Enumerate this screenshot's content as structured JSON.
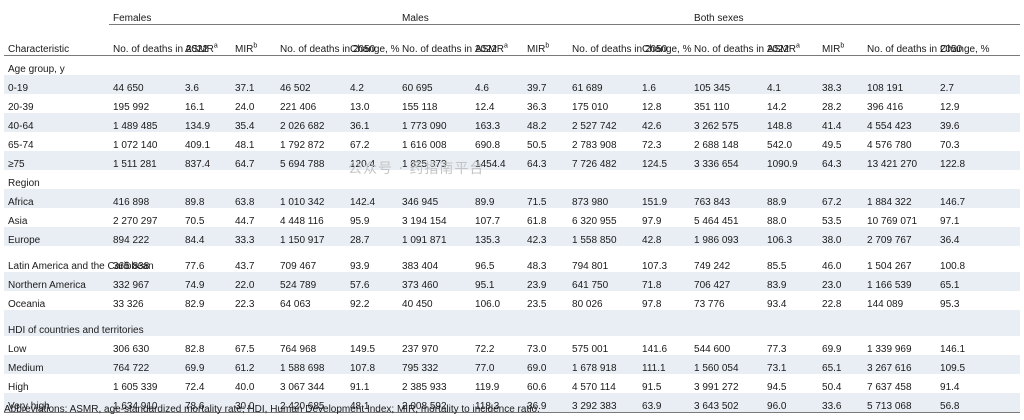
{
  "groups": [
    "Females",
    "Males",
    "Both sexes"
  ],
  "columns": {
    "characteristic": "Characteristic",
    "deaths2022": "No. of deaths in 2022",
    "asmr": "ASMR",
    "asmr_sup": "a",
    "mir": "MIR",
    "mir_sup": "b",
    "deaths2050": "No. of deaths in 2050",
    "change": "Change, %"
  },
  "sections": [
    {
      "title": "Age group, y",
      "rows": [
        {
          "label": "0-19",
          "values": [
            "44 650",
            "3.6",
            "37.1",
            "46 502",
            "4.2",
            "60 695",
            "4.6",
            "39.7",
            "61 689",
            "1.6",
            "105 345",
            "4.1",
            "38.3",
            "108 191",
            "2.7"
          ]
        },
        {
          "label": "20-39",
          "values": [
            "195 992",
            "16.1",
            "24.0",
            "221 406",
            "13.0",
            "155 118",
            "12.4",
            "36.3",
            "175 010",
            "12.8",
            "351 110",
            "14.2",
            "28.2",
            "396 416",
            "12.9"
          ]
        },
        {
          "label": "40-64",
          "values": [
            "1 489 485",
            "134.9",
            "35.4",
            "2 026 682",
            "36.1",
            "1 773 090",
            "163.3",
            "48.2",
            "2 527 742",
            "42.6",
            "3 262 575",
            "148.8",
            "41.4",
            "4 554 423",
            "39.6"
          ]
        },
        {
          "label": "65-74",
          "values": [
            "1 072 140",
            "409.1",
            "48.1",
            "1 792 872",
            "67.2",
            "1 616 008",
            "690.8",
            "50.5",
            "2 783 908",
            "72.3",
            "2 688 148",
            "542.0",
            "49.5",
            "4 576 780",
            "70.3"
          ]
        },
        {
          "label": "≥75",
          "values": [
            "1 511 281",
            "837.4",
            "64.7",
            "5 694 788",
            "120.4",
            "1 825 373",
            "1454.4",
            "64.3",
            "7 726 482",
            "124.5",
            "3 336 654",
            "1090.9",
            "64.3",
            "13 421 270",
            "122.8"
          ]
        }
      ]
    },
    {
      "title": "Region",
      "rows": [
        {
          "label": "Africa",
          "values": [
            "416 898",
            "89.8",
            "63.8",
            "1 010 342",
            "142.4",
            "346 945",
            "89.9",
            "71.5",
            "873 980",
            "151.9",
            "763 843",
            "88.9",
            "67.2",
            "1 884 322",
            "146.7"
          ]
        },
        {
          "label": "Asia",
          "values": [
            "2 270 297",
            "70.5",
            "44.7",
            "4 448 116",
            "95.9",
            "3 194 154",
            "107.7",
            "61.8",
            "6 320 955",
            "97.9",
            "5 464 451",
            "88.0",
            "53.5",
            "10 769 071",
            "97.1"
          ]
        },
        {
          "label": "Europe",
          "values": [
            "894 222",
            "84.4",
            "33.3",
            "1 150 917",
            "28.7",
            "1 091 871",
            "135.3",
            "42.3",
            "1 558 850",
            "42.8",
            "1 986 093",
            "106.3",
            "38.0",
            "2 709 767",
            "36.4"
          ]
        },
        {
          "label": "Latin America and the Caribbean",
          "values": [
            "365 838",
            "77.6",
            "43.7",
            "709 467",
            "93.9",
            "383 404",
            "96.5",
            "48.3",
            "794 801",
            "107.3",
            "749 242",
            "85.5",
            "46.0",
            "1 504 267",
            "100.8"
          ]
        },
        {
          "label": "Northern America",
          "values": [
            "332 967",
            "74.9",
            "22.0",
            "524 789",
            "57.6",
            "373 460",
            "95.1",
            "23.9",
            "641 750",
            "71.8",
            "706 427",
            "83.9",
            "23.0",
            "1 166 539",
            "65.1"
          ]
        },
        {
          "label": "Oceania",
          "values": [
            "33 326",
            "82.9",
            "22.3",
            "64 063",
            "92.2",
            "40 450",
            "106.0",
            "23.5",
            "80 026",
            "97.8",
            "73 776",
            "93.4",
            "22.8",
            "144 089",
            "95.3"
          ]
        }
      ]
    },
    {
      "title": "HDI of countries and territories",
      "rows": [
        {
          "label": "Low",
          "values": [
            "306 630",
            "82.8",
            "67.5",
            "764 968",
            "149.5",
            "237 970",
            "72.2",
            "73.0",
            "575 001",
            "141.6",
            "544 600",
            "77.3",
            "69.9",
            "1 339 969",
            "146.1"
          ]
        },
        {
          "label": "Medium",
          "values": [
            "764 722",
            "69.9",
            "61.2",
            "1 588 698",
            "107.8",
            "795 332",
            "77.0",
            "69.0",
            "1 678 918",
            "111.1",
            "1 560 054",
            "73.1",
            "65.1",
            "3 267 616",
            "109.5"
          ]
        },
        {
          "label": "High",
          "values": [
            "1 605 339",
            "72.4",
            "40.0",
            "3 067 344",
            "91.1",
            "2 385 933",
            "119.9",
            "60.6",
            "4 570 114",
            "91.5",
            "3 991 272",
            "94.5",
            "50.4",
            "7 637 458",
            "91.4"
          ]
        },
        {
          "label": "Very high",
          "values": [
            "1 634 910",
            "78.6",
            "30.0",
            "2 420 685",
            "48.1",
            "2 008 592",
            "118.3",
            "36.9",
            "3 292 383",
            "63.9",
            "3 643 502",
            "96.0",
            "33.6",
            "5 713 068",
            "56.8"
          ]
        }
      ]
    }
  ],
  "watermark": "公众号 · 药指南平台",
  "footnote": "Abbreviations: ASMR, age-standardized mortality rate; HDI, Human Development Index; MIR, mortality to incidence ratio.",
  "colors": {
    "shade": "#e9eef5",
    "rule": "#7a7a7a"
  }
}
